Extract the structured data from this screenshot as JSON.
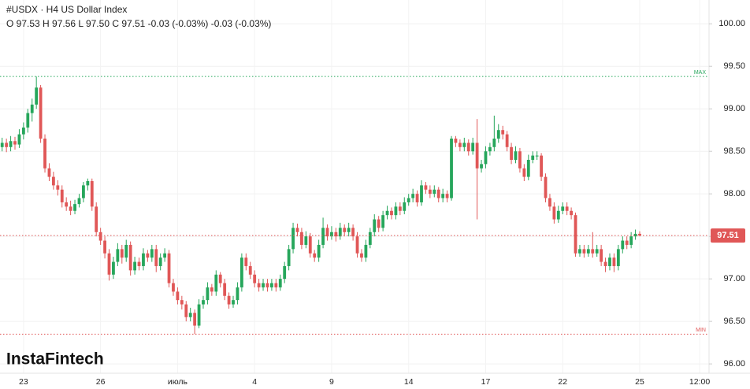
{
  "chart_data": {
    "type": "candlestick",
    "title": "#USDX · H4 US Dollar Index",
    "subtitle": "O 97.53 H 97.56 L 97.50 C 97.51 -0.03 (-0.03%) -0.03 (-0.03%)",
    "brand": "InstaFintech",
    "up_color": "#26a65b",
    "down_color": "#e05757",
    "grid": true,
    "ylim": [
      95.89,
      100.28
    ],
    "xlim": [
      -0.5,
      165.2
    ],
    "yticks": [
      {
        "value": 96,
        "label": "96.00"
      },
      {
        "value": 96.5,
        "label": "96.50"
      },
      {
        "value": 97,
        "label": "97.00"
      },
      {
        "value": 97.5,
        "label": "97.50"
      },
      {
        "value": 98,
        "label": "98.00"
      },
      {
        "value": 98.5,
        "label": "98.50"
      },
      {
        "value": 99,
        "label": "99.00"
      },
      {
        "value": 99.5,
        "label": "99.50"
      },
      {
        "value": 100,
        "label": "100.00"
      }
    ],
    "xticks": [
      {
        "value": 5,
        "label": "23"
      },
      {
        "value": 23,
        "label": "26"
      },
      {
        "value": 41,
        "label": "июль"
      },
      {
        "value": 59,
        "label": "4"
      },
      {
        "value": 77,
        "label": "9"
      },
      {
        "value": 95,
        "label": "14"
      },
      {
        "value": 113,
        "label": "17"
      },
      {
        "value": 131,
        "label": "22"
      },
      {
        "value": 149,
        "label": "25"
      },
      {
        "value": 163,
        "label": "12:00"
      }
    ],
    "last_price": 97.51,
    "max_level": {
      "value": 99.38,
      "label": "MAX"
    },
    "min_level": {
      "value": 96.35,
      "label": "MIN"
    },
    "ohlc": [
      [
        98.55,
        98.66,
        98.5,
        98.6
      ],
      [
        98.6,
        98.65,
        98.49,
        98.55
      ],
      [
        98.55,
        98.68,
        98.5,
        98.62
      ],
      [
        98.62,
        98.67,
        98.52,
        98.58
      ],
      [
        98.58,
        98.76,
        98.54,
        98.7
      ],
      [
        98.7,
        98.84,
        98.64,
        98.78
      ],
      [
        98.78,
        99.0,
        98.72,
        98.95
      ],
      [
        98.95,
        99.12,
        98.85,
        99.05
      ],
      [
        99.05,
        99.38,
        99.0,
        99.25
      ],
      [
        99.25,
        99.28,
        98.6,
        98.65
      ],
      [
        98.65,
        98.7,
        98.25,
        98.3
      ],
      [
        98.3,
        98.36,
        98.15,
        98.2
      ],
      [
        98.2,
        98.26,
        98.05,
        98.1
      ],
      [
        98.1,
        98.16,
        97.98,
        98.05
      ],
      [
        98.05,
        98.1,
        97.84,
        97.9
      ],
      [
        97.9,
        97.96,
        97.8,
        97.85
      ],
      [
        97.85,
        97.92,
        97.75,
        97.8
      ],
      [
        97.8,
        97.93,
        97.76,
        97.88
      ],
      [
        97.88,
        98.0,
        97.84,
        97.95
      ],
      [
        97.95,
        98.14,
        97.9,
        98.1
      ],
      [
        98.1,
        98.18,
        98.04,
        98.15
      ],
      [
        98.15,
        98.18,
        97.8,
        97.85
      ],
      [
        97.85,
        97.9,
        97.5,
        97.55
      ],
      [
        97.55,
        97.6,
        97.4,
        97.45
      ],
      [
        97.45,
        97.5,
        97.24,
        97.3
      ],
      [
        97.3,
        97.35,
        96.98,
        97.05
      ],
      [
        97.05,
        97.26,
        97.0,
        97.2
      ],
      [
        97.2,
        97.42,
        97.15,
        97.35
      ],
      [
        97.35,
        97.4,
        97.18,
        97.25
      ],
      [
        97.25,
        97.46,
        97.2,
        97.4
      ],
      [
        97.4,
        97.44,
        97.04,
        97.1
      ],
      [
        97.1,
        97.26,
        97.05,
        97.2
      ],
      [
        97.2,
        97.25,
        97.1,
        97.15
      ],
      [
        97.15,
        97.36,
        97.1,
        97.3
      ],
      [
        97.3,
        97.34,
        97.2,
        97.25
      ],
      [
        97.25,
        97.4,
        97.2,
        97.35
      ],
      [
        97.35,
        97.4,
        97.08,
        97.15
      ],
      [
        97.15,
        97.3,
        97.1,
        97.25
      ],
      [
        97.25,
        97.36,
        97.2,
        97.3
      ],
      [
        97.3,
        97.34,
        96.9,
        96.95
      ],
      [
        96.95,
        97.0,
        96.8,
        96.85
      ],
      [
        96.85,
        96.9,
        96.7,
        96.75
      ],
      [
        96.75,
        96.8,
        96.64,
        96.7
      ],
      [
        96.7,
        96.74,
        96.5,
        96.55
      ],
      [
        96.55,
        96.66,
        96.5,
        96.6
      ],
      [
        96.6,
        96.64,
        96.35,
        96.45
      ],
      [
        96.45,
        96.76,
        96.42,
        96.7
      ],
      [
        96.7,
        96.8,
        96.65,
        96.75
      ],
      [
        96.75,
        96.96,
        96.7,
        96.9
      ],
      [
        96.9,
        96.94,
        96.8,
        96.85
      ],
      [
        96.85,
        97.1,
        96.8,
        97.05
      ],
      [
        97.05,
        97.08,
        96.9,
        96.95
      ],
      [
        96.95,
        97.0,
        96.75,
        96.8
      ],
      [
        96.8,
        96.84,
        96.65,
        96.7
      ],
      [
        96.7,
        96.8,
        96.66,
        96.75
      ],
      [
        96.75,
        96.96,
        96.7,
        96.9
      ],
      [
        96.9,
        97.3,
        96.85,
        97.25
      ],
      [
        97.25,
        97.3,
        97.1,
        97.15
      ],
      [
        97.15,
        97.2,
        97.0,
        97.05
      ],
      [
        97.05,
        97.1,
        96.9,
        96.95
      ],
      [
        96.95,
        97.0,
        96.85,
        96.9
      ],
      [
        96.9,
        97.0,
        96.86,
        96.95
      ],
      [
        96.95,
        97.0,
        96.85,
        96.9
      ],
      [
        96.9,
        97.0,
        96.86,
        96.95
      ],
      [
        96.95,
        97.0,
        96.85,
        96.9
      ],
      [
        96.9,
        97.05,
        96.86,
        97.0
      ],
      [
        97.0,
        97.2,
        96.95,
        97.15
      ],
      [
        97.15,
        97.4,
        97.1,
        97.35
      ],
      [
        97.35,
        97.66,
        97.3,
        97.6
      ],
      [
        97.6,
        97.65,
        97.5,
        97.55
      ],
      [
        97.55,
        97.6,
        97.35,
        97.4
      ],
      [
        97.4,
        97.56,
        97.36,
        97.5
      ],
      [
        97.5,
        97.54,
        97.25,
        97.3
      ],
      [
        97.3,
        97.34,
        97.2,
        97.25
      ],
      [
        97.25,
        97.46,
        97.2,
        97.4
      ],
      [
        97.4,
        97.72,
        97.36,
        97.6
      ],
      [
        97.6,
        97.64,
        97.45,
        97.5
      ],
      [
        97.5,
        97.62,
        97.46,
        97.55
      ],
      [
        97.55,
        97.6,
        97.44,
        97.5
      ],
      [
        97.5,
        97.66,
        97.46,
        97.6
      ],
      [
        97.6,
        97.64,
        97.5,
        97.55
      ],
      [
        97.55,
        97.66,
        97.5,
        97.6
      ],
      [
        97.6,
        97.64,
        97.45,
        97.5
      ],
      [
        97.5,
        97.55,
        97.25,
        97.3
      ],
      [
        97.3,
        97.35,
        97.2,
        97.25
      ],
      [
        97.25,
        97.46,
        97.2,
        97.4
      ],
      [
        97.4,
        97.6,
        97.36,
        97.55
      ],
      [
        97.55,
        97.76,
        97.5,
        97.7
      ],
      [
        97.7,
        97.74,
        97.55,
        97.6
      ],
      [
        97.6,
        97.8,
        97.56,
        97.75
      ],
      [
        97.75,
        97.86,
        97.7,
        97.8
      ],
      [
        97.8,
        97.84,
        97.7,
        97.75
      ],
      [
        97.75,
        97.9,
        97.7,
        97.85
      ],
      [
        97.85,
        97.9,
        97.75,
        97.8
      ],
      [
        97.8,
        97.96,
        97.76,
        97.9
      ],
      [
        97.9,
        98.0,
        97.86,
        97.95
      ],
      [
        97.95,
        98.06,
        97.9,
        98.0
      ],
      [
        98.0,
        98.04,
        97.85,
        97.9
      ],
      [
        97.9,
        98.16,
        97.86,
        98.1
      ],
      [
        98.1,
        98.14,
        98.0,
        98.05
      ],
      [
        98.05,
        98.1,
        97.95,
        98.0
      ],
      [
        98.0,
        98.1,
        97.96,
        98.05
      ],
      [
        98.05,
        98.08,
        97.9,
        97.95
      ],
      [
        97.95,
        98.06,
        97.9,
        98.0
      ],
      [
        98.0,
        98.04,
        97.9,
        97.95
      ],
      [
        97.95,
        98.68,
        97.92,
        98.65
      ],
      [
        98.65,
        98.68,
        98.55,
        98.6
      ],
      [
        98.6,
        98.64,
        98.5,
        98.55
      ],
      [
        98.55,
        98.66,
        98.5,
        98.6
      ],
      [
        98.6,
        98.64,
        98.45,
        98.5
      ],
      [
        98.5,
        98.66,
        98.46,
        98.6
      ],
      [
        98.6,
        98.88,
        97.7,
        98.3
      ],
      [
        98.3,
        98.4,
        98.25,
        98.35
      ],
      [
        98.35,
        98.56,
        98.3,
        98.5
      ],
      [
        98.5,
        98.6,
        98.45,
        98.55
      ],
      [
        98.55,
        98.92,
        98.5,
        98.65
      ],
      [
        98.65,
        98.82,
        98.6,
        98.75
      ],
      [
        98.75,
        98.8,
        98.64,
        98.7
      ],
      [
        98.7,
        98.74,
        98.5,
        98.55
      ],
      [
        98.55,
        98.6,
        98.35,
        98.4
      ],
      [
        98.4,
        98.56,
        98.36,
        98.5
      ],
      [
        98.5,
        98.54,
        98.25,
        98.3
      ],
      [
        98.3,
        98.35,
        98.15,
        98.2
      ],
      [
        98.2,
        98.46,
        98.16,
        98.4
      ],
      [
        98.4,
        98.5,
        98.36,
        98.45
      ],
      [
        98.45,
        98.5,
        98.4,
        98.45
      ],
      [
        98.45,
        98.48,
        98.15,
        98.2
      ],
      [
        98.2,
        98.24,
        97.9,
        97.95
      ],
      [
        97.95,
        98.0,
        97.8,
        97.85
      ],
      [
        97.85,
        97.9,
        97.65,
        97.7
      ],
      [
        97.7,
        97.86,
        97.66,
        97.8
      ],
      [
        97.8,
        97.9,
        97.76,
        97.85
      ],
      [
        97.85,
        97.9,
        97.75,
        97.8
      ],
      [
        97.8,
        97.84,
        97.7,
        97.75
      ],
      [
        97.75,
        97.78,
        97.26,
        97.3
      ],
      [
        97.3,
        97.4,
        97.26,
        97.35
      ],
      [
        97.35,
        97.4,
        97.25,
        97.3
      ],
      [
        97.3,
        97.4,
        97.26,
        97.35
      ],
      [
        97.35,
        97.55,
        97.25,
        97.3
      ],
      [
        97.3,
        97.4,
        97.26,
        97.35
      ],
      [
        97.35,
        97.4,
        97.15,
        97.2
      ],
      [
        97.2,
        97.25,
        97.08,
        97.15
      ],
      [
        97.15,
        97.3,
        97.1,
        97.25
      ],
      [
        97.25,
        97.3,
        97.08,
        97.15
      ],
      [
        97.15,
        97.4,
        97.1,
        97.35
      ],
      [
        97.35,
        97.5,
        97.3,
        97.45
      ],
      [
        97.45,
        97.5,
        97.35,
        97.4
      ],
      [
        97.4,
        97.55,
        97.36,
        97.5
      ],
      [
        97.5,
        97.58,
        97.46,
        97.53
      ],
      [
        97.53,
        97.56,
        97.5,
        97.51
      ]
    ]
  }
}
